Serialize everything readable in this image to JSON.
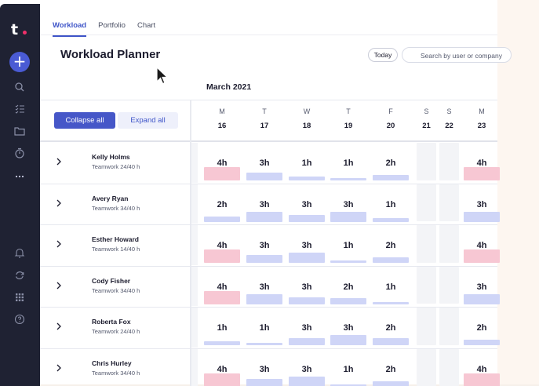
{
  "app": {
    "logo_text": "t"
  },
  "sidebar": {
    "icons": [
      "plus-icon",
      "search-icon",
      "list-icon",
      "folder-icon",
      "timer-icon",
      "more-icon",
      "bell-icon",
      "sync-icon",
      "apps-grid-icon",
      "help-icon"
    ]
  },
  "tabs": [
    {
      "label": "Workload",
      "active": true
    },
    {
      "label": "Portfolio",
      "active": false
    },
    {
      "label": "Chart",
      "active": false
    }
  ],
  "header": {
    "title": "Workload Planner",
    "today_label": "Today",
    "search_placeholder": "Search by user or company"
  },
  "calendar": {
    "month": "March 2021",
    "days": [
      {
        "letter": "M",
        "num": "16",
        "weekend": false
      },
      {
        "letter": "T",
        "num": "17",
        "weekend": false
      },
      {
        "letter": "W",
        "num": "18",
        "weekend": false
      },
      {
        "letter": "T",
        "num": "19",
        "weekend": false
      },
      {
        "letter": "F",
        "num": "20",
        "weekend": false
      },
      {
        "letter": "S",
        "num": "21",
        "weekend": true
      },
      {
        "letter": "S",
        "num": "22",
        "weekend": true
      },
      {
        "letter": "M",
        "num": "23",
        "weekend": false
      }
    ]
  },
  "controls": {
    "collapse_label": "Collapse all",
    "expand_label": "Expand all"
  },
  "colors": {
    "accent": "#4657c8",
    "over": "#f7c7d3",
    "normal": "#cfd5f7",
    "sidebar": "#1f2233"
  },
  "rows": [
    {
      "name": "Kelly Holms",
      "sub": "Teamwork 24/40 h",
      "hours": [
        "4h",
        "3h",
        "1h",
        "1h",
        "2h",
        "4h"
      ],
      "fill": [
        1.0,
        0.6,
        0.3,
        0.2,
        0.4,
        1.0
      ],
      "over": [
        true,
        false,
        false,
        false,
        false,
        true
      ]
    },
    {
      "name": "Avery Ryan",
      "sub": "Teamwork 34/40 h",
      "hours": [
        "2h",
        "3h",
        "3h",
        "3h",
        "1h",
        "3h"
      ],
      "fill": [
        0.4,
        0.75,
        0.55,
        0.75,
        0.3,
        0.75
      ],
      "over": [
        false,
        false,
        false,
        false,
        false,
        false
      ]
    },
    {
      "name": "Esther Howard",
      "sub": "Teamwork 14/40 h",
      "hours": [
        "4h",
        "3h",
        "3h",
        "1h",
        "2h",
        "4h"
      ],
      "fill": [
        1.0,
        0.6,
        0.75,
        0.2,
        0.4,
        1.0
      ],
      "over": [
        true,
        false,
        false,
        false,
        false,
        true
      ]
    },
    {
      "name": "Cody Fisher",
      "sub": "Teamwork 34/40 h",
      "hours": [
        "4h",
        "3h",
        "3h",
        "2h",
        "1h",
        "3h"
      ],
      "fill": [
        1.0,
        0.75,
        0.55,
        0.45,
        0.2,
        0.75
      ],
      "over": [
        true,
        false,
        false,
        false,
        false,
        false
      ]
    },
    {
      "name": "Roberta Fox",
      "sub": "Teamwork 24/40 h",
      "hours": [
        "1h",
        "1h",
        "3h",
        "3h",
        "2h",
        "2h"
      ],
      "fill": [
        0.3,
        0.2,
        0.55,
        0.75,
        0.55,
        0.4
      ],
      "over": [
        false,
        false,
        false,
        false,
        false,
        false
      ]
    },
    {
      "name": "Chris Hurley",
      "sub": "Teamwork 34/40 h",
      "hours": [
        "4h",
        "3h",
        "3h",
        "1h",
        "2h",
        "4h"
      ],
      "fill": [
        1.0,
        0.6,
        0.75,
        0.2,
        0.4,
        1.0
      ],
      "over": [
        true,
        false,
        false,
        false,
        false,
        true
      ]
    }
  ]
}
